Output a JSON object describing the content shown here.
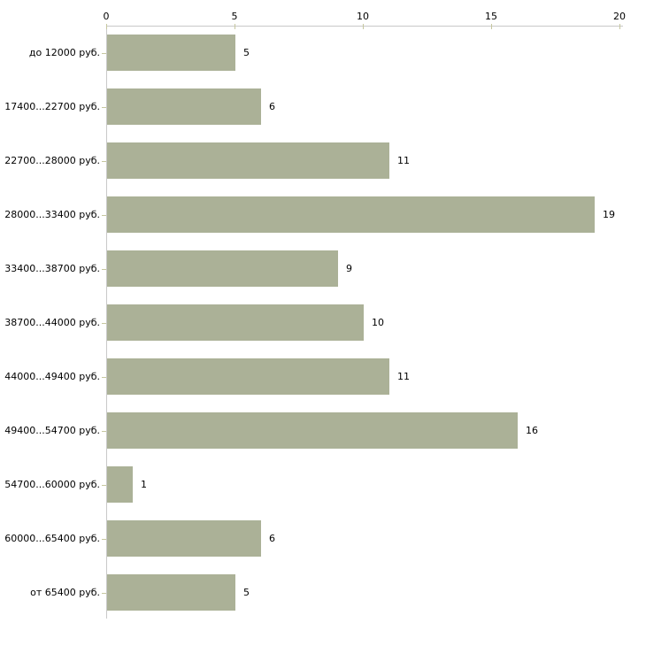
{
  "chart_data": {
    "type": "bar",
    "orientation": "horizontal",
    "title": "",
    "xlabel": "",
    "ylabel": "",
    "categories": [
      "до 12000 руб.",
      "17400...22700 руб.",
      "22700...28000 руб.",
      "28000...33400 руб.",
      "33400...38700 руб.",
      "38700...44000 руб.",
      "44000...49400 руб.",
      "49400...54700 руб.",
      "54700...60000 руб.",
      "60000...65400 руб.",
      "от 65400 руб."
    ],
    "values": [
      5,
      6,
      11,
      19,
      9,
      10,
      11,
      16,
      1,
      6,
      5
    ],
    "value_labels": [
      "5",
      "6",
      "11",
      "19",
      "9",
      "10",
      "11",
      "16",
      "1",
      "6",
      "5"
    ],
    "x_ticks": [
      0,
      5,
      10,
      15,
      20
    ],
    "x_tick_labels": [
      "0",
      "5",
      "10",
      "15",
      "20"
    ],
    "xlim": [
      0,
      20
    ],
    "grid": false,
    "legend": false,
    "axis_position": "top",
    "bar_color": "#abb197",
    "axis_color": "#c9c9c9",
    "tick_color": "#c6c79f",
    "text_color": "#000000",
    "background_color": "#ffffff"
  }
}
